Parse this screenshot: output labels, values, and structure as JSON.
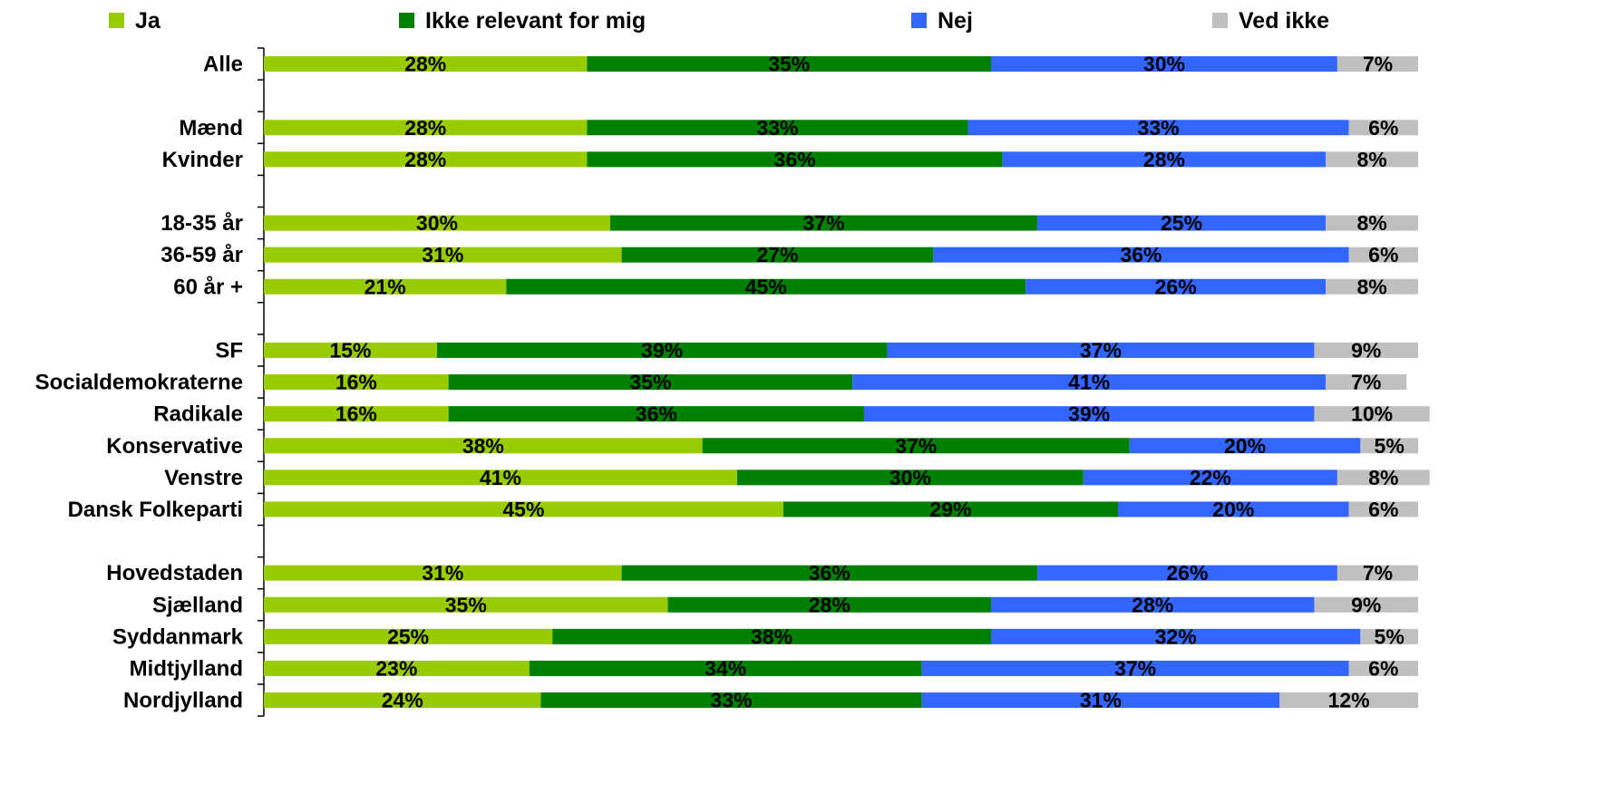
{
  "chart_data": {
    "type": "bar",
    "orientation": "horizontal",
    "stacked": true,
    "stack_mode": "percent",
    "legend_position": "top",
    "grid": false,
    "xlim": [
      0,
      100
    ],
    "categories": [
      "Alle",
      "",
      "Mænd",
      "Kvinder",
      "",
      "18-35 år",
      "36-59 år",
      "60 år +",
      "",
      "SF",
      "Socialdemokraterne",
      "Radikale",
      "Konservative",
      "Venstre",
      "Dansk Folkeparti",
      "",
      "Hovedstaden",
      "Sjælland",
      "Syddanmark",
      "Midtjylland",
      "Nordjylland"
    ],
    "series": [
      {
        "name": "Ja",
        "color": "#99cc00",
        "values": [
          28,
          null,
          28,
          28,
          null,
          30,
          31,
          21,
          null,
          15,
          16,
          16,
          38,
          41,
          45,
          null,
          31,
          35,
          25,
          23,
          24
        ]
      },
      {
        "name": "Ikke relevant for mig",
        "color": "#008000",
        "values": [
          35,
          null,
          33,
          36,
          null,
          37,
          27,
          45,
          null,
          39,
          35,
          36,
          37,
          30,
          29,
          null,
          36,
          28,
          38,
          34,
          33
        ]
      },
      {
        "name": "Nej",
        "color": "#3366ff",
        "values": [
          30,
          null,
          33,
          28,
          null,
          25,
          36,
          26,
          null,
          37,
          41,
          39,
          20,
          22,
          20,
          null,
          26,
          28,
          32,
          37,
          31
        ]
      },
      {
        "name": "Ved ikke",
        "color": "#c0c0c0",
        "values": [
          7,
          null,
          6,
          8,
          null,
          8,
          6,
          8,
          null,
          9,
          7,
          10,
          5,
          8,
          6,
          null,
          7,
          9,
          5,
          6,
          12
        ]
      }
    ],
    "value_format": "{v}%"
  }
}
